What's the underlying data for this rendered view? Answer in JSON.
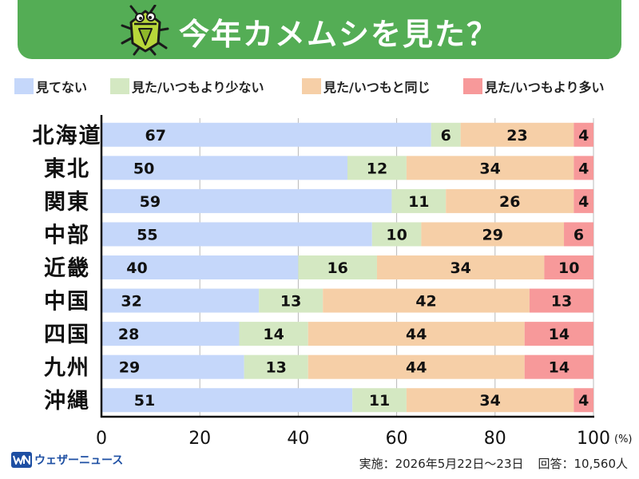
{
  "header": {
    "title": "今年カメムシを見た？",
    "icon": "stink-bug-icon",
    "banner_color": "#54ad55"
  },
  "legend": [
    {
      "label": "見てない",
      "color": "#c5d7fa"
    },
    {
      "label": "見た/いつもより少ない",
      "color": "#d4e8c2"
    },
    {
      "label": "見た/いつもと同じ",
      "color": "#f6cfa7"
    },
    {
      "label": "見た/いつもより多い",
      "color": "#f7999a"
    }
  ],
  "chart_data": {
    "type": "bar",
    "orientation": "horizontal",
    "stacked": true,
    "categories": [
      "北海道",
      "東北",
      "関東",
      "中部",
      "近畿",
      "中国",
      "四国",
      "九州",
      "沖縄"
    ],
    "series": [
      {
        "name": "見てない",
        "values": [
          67,
          50,
          59,
          55,
          40,
          32,
          28,
          29,
          51
        ]
      },
      {
        "name": "見た/いつもより少ない",
        "values": [
          6,
          12,
          11,
          10,
          16,
          13,
          14,
          13,
          11
        ]
      },
      {
        "name": "見た/いつもと同じ",
        "values": [
          23,
          34,
          26,
          29,
          34,
          42,
          44,
          44,
          34
        ]
      },
      {
        "name": "見た/いつもより多い",
        "values": [
          4,
          4,
          4,
          6,
          10,
          13,
          14,
          14,
          4
        ]
      }
    ],
    "xlim": [
      0,
      100
    ],
    "x_ticks": [
      "0",
      "20",
      "40",
      "60",
      "80",
      "100"
    ],
    "x_unit": "(%)",
    "grid": true
  },
  "footer": {
    "brand": "ウェザーニュース",
    "survey_period": "実施：2026年5月22日〜23日",
    "respondents": "回答：10,560人"
  }
}
